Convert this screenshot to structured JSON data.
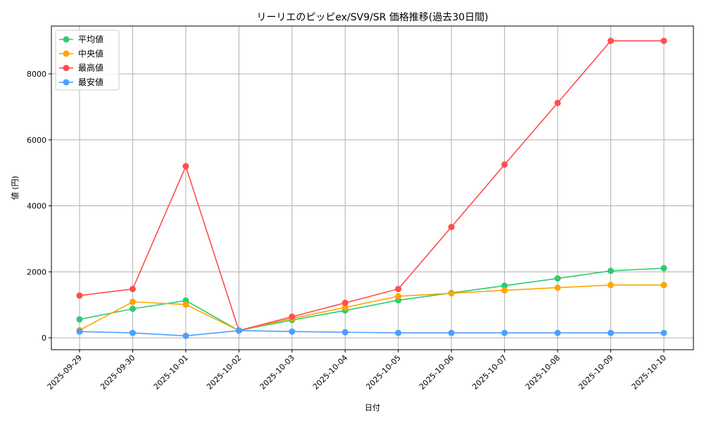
{
  "chart_data": {
    "type": "line",
    "title": "リーリエのピッピex/SV9/SR 価格推移(過去30日間)",
    "xlabel": "日付",
    "ylabel": "値 (円)",
    "categories": [
      "2025-09-29",
      "2025-09-30",
      "2025-10-01",
      "2025-10-02",
      "2025-10-03",
      "2025-10-04",
      "2025-10-05",
      "2025-10-06",
      "2025-10-07",
      "2025-10-08",
      "2025-10-09",
      "2025-10-10"
    ],
    "ylim": [
      -360,
      9450
    ],
    "yticks": [
      0,
      2000,
      4000,
      6000,
      8000
    ],
    "grid": true,
    "legend_position": "top-left",
    "series": [
      {
        "name": "平均値",
        "color": "#2ecc71",
        "values": [
          560,
          880,
          1130,
          220,
          540,
          830,
          1140,
          1360,
          1580,
          1800,
          2030,
          2110
        ]
      },
      {
        "name": "中央値",
        "color": "#ffa500",
        "values": [
          230,
          1090,
          1010,
          220,
          590,
          920,
          1260,
          1350,
          1440,
          1520,
          1600,
          1600
        ]
      },
      {
        "name": "最高値",
        "color": "#ff4d4d",
        "values": [
          1280,
          1480,
          5200,
          220,
          640,
          1060,
          1480,
          3360,
          5250,
          7120,
          9000,
          9000
        ]
      },
      {
        "name": "最安値",
        "color": "#4d9fff",
        "values": [
          190,
          150,
          60,
          220,
          190,
          170,
          150,
          150,
          150,
          150,
          150,
          150
        ]
      }
    ]
  }
}
